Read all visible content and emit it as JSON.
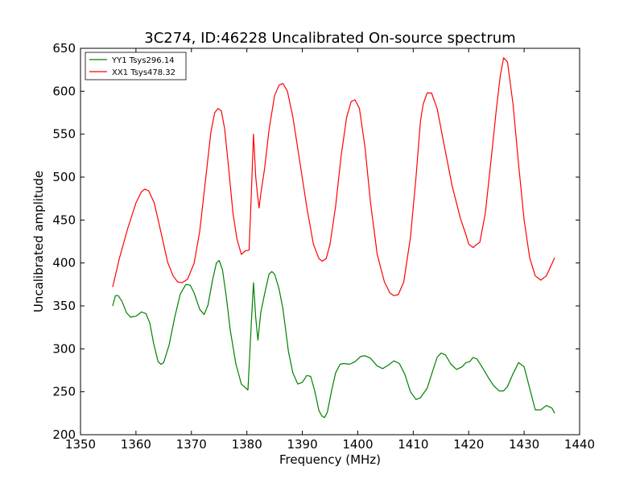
{
  "chart_data": {
    "type": "line",
    "title": "3C274, ID:46228 Uncalibrated On-source spectrum",
    "xlabel": "Frequency (MHz)",
    "ylabel": "Uncalibrated amplitude",
    "xlim": [
      1350,
      1440
    ],
    "ylim": [
      200,
      650
    ],
    "xticks": [
      "1350",
      "1360",
      "1370",
      "1380",
      "1390",
      "1400",
      "1410",
      "1420",
      "1430",
      "1440"
    ],
    "yticks": [
      "200",
      "250",
      "300",
      "350",
      "400",
      "450",
      "500",
      "550",
      "600",
      "650"
    ],
    "grid": false,
    "legend_position": "top-left",
    "series": [
      {
        "name": "YY1 Tsys296.14",
        "color": "#008000",
        "x": [
          1355.8,
          1356.3,
          1356.8,
          1357.5,
          1358.3,
          1359.0,
          1360.0,
          1361.0,
          1361.8,
          1362.5,
          1363.2,
          1364.0,
          1364.5,
          1365.0,
          1366.0,
          1367.0,
          1368.0,
          1369.0,
          1369.8,
          1370.5,
          1371.5,
          1372.3,
          1373.0,
          1373.8,
          1374.5,
          1375.0,
          1375.6,
          1376.3,
          1377.0,
          1378.0,
          1379.0,
          1380.2,
          1380.8,
          1381.2,
          1381.6,
          1382.0,
          1382.5,
          1383.2,
          1384.0,
          1384.5,
          1385.0,
          1385.8,
          1386.5,
          1387.5,
          1388.3,
          1389.2,
          1390.0,
          1390.8,
          1391.5,
          1392.2,
          1393.0,
          1393.5,
          1394.0,
          1394.5,
          1395.3,
          1396.0,
          1396.8,
          1397.5,
          1398.5,
          1399.5,
          1400.5,
          1401.3,
          1402.3,
          1403.5,
          1404.5,
          1405.5,
          1406.5,
          1407.5,
          1408.5,
          1409.5,
          1410.5,
          1411.3,
          1412.5,
          1413.5,
          1414.3,
          1415.0,
          1415.8,
          1416.8,
          1417.8,
          1418.8,
          1419.5,
          1420.2,
          1420.8,
          1421.5,
          1422.5,
          1423.5,
          1424.5,
          1425.5,
          1426.3,
          1427.0,
          1428.0,
          1429.0,
          1430.0,
          1431.0,
          1432.0,
          1433.0,
          1434.0,
          1435.0,
          1435.5
        ],
        "y": [
          350,
          362,
          362,
          355,
          342,
          337,
          338,
          343,
          341,
          330,
          306,
          285,
          282,
          284,
          305,
          337,
          364,
          375,
          374,
          365,
          346,
          340,
          351,
          380,
          400,
          403,
          392,
          360,
          322,
          283,
          259,
          252,
          330,
          377,
          336,
          310,
          342,
          364,
          387,
          390,
          387,
          370,
          347,
          297,
          272,
          259,
          261,
          269,
          268,
          252,
          228,
          222,
          220,
          226,
          252,
          272,
          282,
          283,
          282,
          285,
          291,
          292,
          289,
          280,
          277,
          281,
          286,
          283,
          270,
          250,
          241,
          243,
          254,
          274,
          290,
          295,
          293,
          282,
          276,
          279,
          284,
          285,
          290,
          288,
          278,
          267,
          257,
          251,
          251,
          256,
          271,
          284,
          279,
          254,
          229,
          229,
          234,
          231,
          225
        ]
      },
      {
        "name": "XX1 Tsys478.32",
        "color": "#ff0000",
        "x": [
          1355.8,
          1357.0,
          1358.5,
          1360.0,
          1361.0,
          1361.6,
          1362.3,
          1363.3,
          1364.5,
          1365.7,
          1366.7,
          1367.5,
          1368.3,
          1369.3,
          1370.5,
          1371.5,
          1372.5,
          1373.5,
          1374.2,
          1374.8,
          1375.4,
          1376.0,
          1376.8,
          1377.5,
          1378.2,
          1379.0,
          1379.7,
          1380.4,
          1380.8,
          1381.2,
          1381.6,
          1381.9,
          1382.2,
          1382.5,
          1383.2,
          1384.0,
          1385.0,
          1385.8,
          1386.5,
          1387.3,
          1388.3,
          1389.5,
          1390.8,
          1392.0,
          1393.0,
          1393.6,
          1394.3,
          1395.0,
          1396.0,
          1397.0,
          1398.0,
          1398.8,
          1399.5,
          1400.3,
          1401.3,
          1402.3,
          1403.5,
          1404.8,
          1405.8,
          1406.5,
          1407.3,
          1408.3,
          1409.5,
          1410.5,
          1411.3,
          1411.8,
          1412.5,
          1413.3,
          1414.3,
          1415.5,
          1417.0,
          1418.5,
          1419.5,
          1420.0,
          1420.8,
          1421.5,
          1422.0,
          1423.0,
          1424.0,
          1425.0,
          1425.7,
          1426.3,
          1427.0,
          1428.0,
          1429.0,
          1430.0,
          1431.0,
          1432.0,
          1433.0,
          1434.0,
          1435.5
        ],
        "y": [
          372,
          405,
          440,
          470,
          483,
          486,
          484,
          470,
          436,
          401,
          385,
          378,
          377,
          381,
          400,
          437,
          494,
          552,
          575,
          580,
          577,
          556,
          505,
          458,
          428,
          410,
          414,
          415,
          480,
          550,
          500,
          480,
          464,
          480,
          510,
          555,
          595,
          607,
          609,
          600,
          570,
          520,
          465,
          422,
          405,
          402,
          405,
          422,
          466,
          525,
          570,
          588,
          590,
          580,
          535,
          470,
          410,
          378,
          365,
          362,
          363,
          378,
          430,
          500,
          565,
          585,
          598,
          598,
          580,
          540,
          490,
          452,
          433,
          422,
          418,
          422,
          424,
          458,
          518,
          580,
          618,
          639,
          634,
          585,
          515,
          450,
          406,
          385,
          380,
          385,
          406
        ]
      }
    ]
  }
}
